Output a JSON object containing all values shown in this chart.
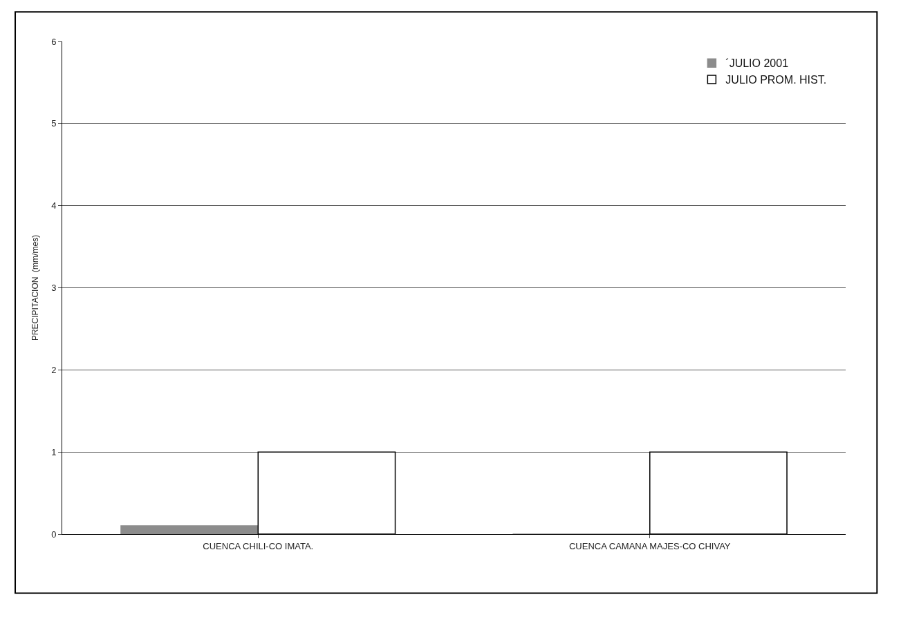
{
  "chart_data": {
    "type": "bar",
    "ylabel": "PRECIPITACION  (mm/mes)",
    "categories": [
      "CUENCA CHILI-CO IMATA.",
      "CUENCA CAMANA MAJES-CO CHIVAY"
    ],
    "series": [
      {
        "name": "´JULIO 2001",
        "color": "#8c8c8c",
        "values": [
          0.1,
          0
        ]
      },
      {
        "name": "JULIO PROM. HIST.",
        "color": "#ffffff",
        "values": [
          1.0,
          1.0
        ]
      }
    ],
    "ylim": [
      0,
      6
    ],
    "yticks": [
      0,
      1,
      2,
      3,
      4,
      5,
      6
    ],
    "grid": "y",
    "legend": "top right"
  }
}
